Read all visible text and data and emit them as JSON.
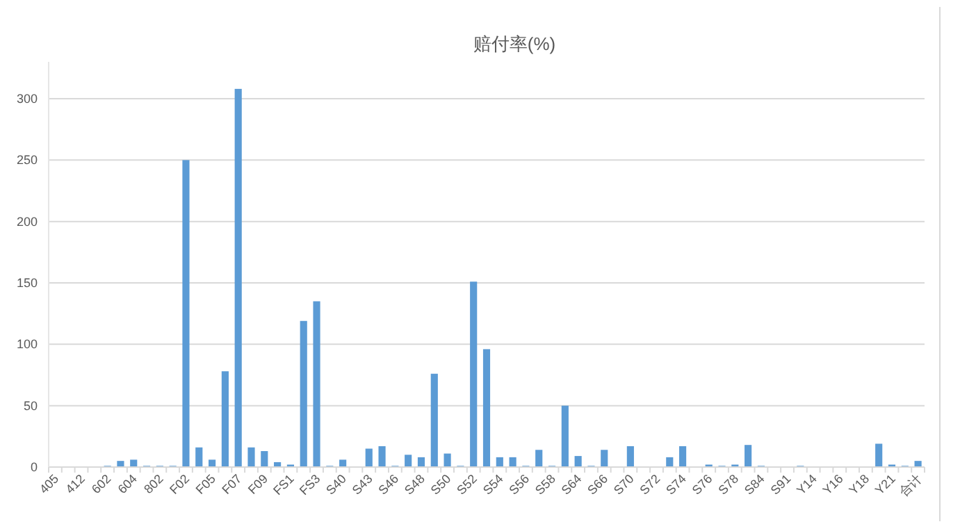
{
  "chart_data": {
    "type": "bar",
    "title": "赔付率(%)",
    "categories": [
      "405",
      null,
      "412",
      null,
      "602",
      null,
      "604",
      null,
      "802",
      null,
      "F02",
      null,
      "F05",
      null,
      "F07",
      null,
      "F09",
      null,
      "FS1",
      null,
      "FS3",
      null,
      "S40",
      null,
      "S43",
      null,
      "S46",
      null,
      "S48",
      null,
      "S50",
      null,
      "S52",
      null,
      "S54",
      null,
      "S56",
      null,
      "S58",
      null,
      "S64",
      null,
      "S66",
      null,
      "S70",
      null,
      "S72",
      null,
      "S74",
      null,
      "S76",
      null,
      "S78",
      null,
      "S84",
      null,
      "S91",
      null,
      "Y14",
      null,
      "Y16",
      null,
      "Y18",
      null,
      "Y21",
      null,
      "合计"
    ],
    "values": [
      0,
      0,
      0,
      0,
      1,
      5,
      6,
      1,
      1,
      1,
      250,
      16,
      6,
      78,
      308,
      16,
      13,
      4,
      2,
      119,
      135,
      1,
      6,
      0,
      15,
      17,
      1,
      10,
      8,
      76,
      11,
      1,
      151,
      96,
      8,
      8,
      1,
      14,
      1,
      50,
      9,
      1,
      14,
      0,
      17,
      0,
      0,
      8,
      17,
      0,
      2,
      1,
      2,
      18,
      1,
      0,
      0,
      1,
      0,
      0,
      0,
      0,
      0,
      19,
      2,
      1,
      5
    ],
    "color": "#5b9bd5",
    "ylim": [
      0,
      330
    ],
    "yticks": [
      0,
      50,
      100,
      150,
      200,
      250,
      300
    ],
    "grid": "y"
  }
}
